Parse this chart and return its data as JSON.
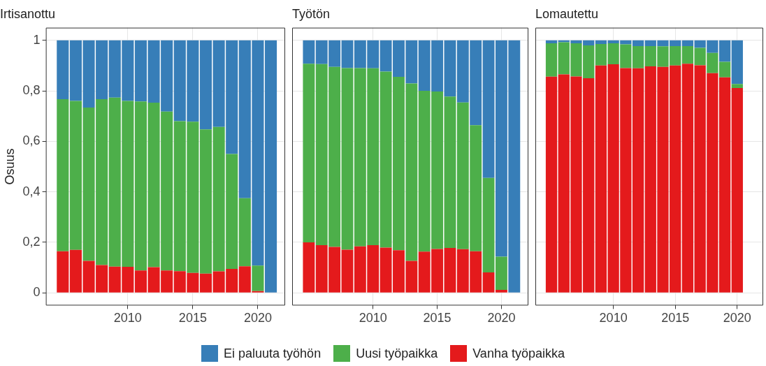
{
  "chart_data": [
    {
      "type": "bar",
      "title": "Irtisanottu",
      "ylabel": "Osuus",
      "stacked": true,
      "legend": "bottom",
      "grid": true,
      "x": [
        2005,
        2006,
        2007,
        2008,
        2009,
        2010,
        2011,
        2012,
        2013,
        2014,
        2015,
        2016,
        2017,
        2018,
        2019,
        2020,
        2021
      ],
      "xlim": [
        2003.7,
        2022.1
      ],
      "xticks": [
        2010,
        2015,
        2020
      ],
      "ylim": [
        -0.05,
        1.05
      ],
      "yticks": [
        0,
        {
          "value": 0.2,
          "label": "0,2"
        },
        {
          "value": 0.4,
          "label": "0,4"
        },
        {
          "value": 0.6,
          "label": "0,6"
        },
        {
          "value": 0.8,
          "label": "0,8"
        },
        1
      ],
      "series": [
        {
          "name": "Vanha työpaikka",
          "color": "#e41a1c",
          "values": [
            0.165,
            0.17,
            0.127,
            0.11,
            0.104,
            0.103,
            0.089,
            0.102,
            0.089,
            0.086,
            0.079,
            0.076,
            0.085,
            0.095,
            0.105,
            0.007,
            0
          ]
        },
        {
          "name": "Uusi työpaikka",
          "color": "#4daf4a",
          "values": [
            0.602,
            0.59,
            0.607,
            0.657,
            0.669,
            0.657,
            0.669,
            0.651,
            0.629,
            0.594,
            0.599,
            0.571,
            0.572,
            0.455,
            0.27,
            0.101,
            0
          ]
        },
        {
          "name": "Ei paluuta työhön",
          "color": "#377eb8",
          "values": [
            0.233,
            0.24,
            0.266,
            0.233,
            0.227,
            0.24,
            0.242,
            0.247,
            0.282,
            0.32,
            0.322,
            0.353,
            0.343,
            0.45,
            0.625,
            0.892,
            1
          ]
        }
      ]
    },
    {
      "type": "bar",
      "title": "Työtön",
      "stacked": true,
      "grid": true,
      "tick_labels": "x",
      "x": [
        2005,
        2006,
        2007,
        2008,
        2009,
        2010,
        2011,
        2012,
        2013,
        2014,
        2015,
        2016,
        2017,
        2018,
        2019,
        2020,
        2021
      ],
      "xlim": [
        2003.7,
        2022.1
      ],
      "xticks": [
        2010,
        2015,
        2020
      ],
      "ylim": [
        -0.05,
        1.05
      ],
      "yticks": [
        0,
        0.2,
        0.4,
        0.6,
        0.8,
        1
      ],
      "series": [
        {
          "color": "#e41a1c",
          "values": [
            0.2,
            0.189,
            0.182,
            0.171,
            0.184,
            0.189,
            0.179,
            0.169,
            0.127,
            0.163,
            0.174,
            0.178,
            0.173,
            0.165,
            0.081,
            0.012,
            0
          ]
        },
        {
          "color": "#4daf4a",
          "values": [
            0.707,
            0.717,
            0.713,
            0.719,
            0.706,
            0.7,
            0.697,
            0.686,
            0.702,
            0.637,
            0.623,
            0.599,
            0.581,
            0.499,
            0.374,
            0.131,
            0
          ]
        },
        {
          "color": "#377eb8",
          "values": [
            0.093,
            0.094,
            0.105,
            0.11,
            0.11,
            0.111,
            0.124,
            0.145,
            0.171,
            0.2,
            0.203,
            0.223,
            0.246,
            0.336,
            0.545,
            0.857,
            1
          ]
        }
      ]
    },
    {
      "type": "bar",
      "title": "Lomautettu",
      "stacked": true,
      "grid": true,
      "tick_labels": "x",
      "x": [
        2005,
        2006,
        2007,
        2008,
        2009,
        2010,
        2011,
        2012,
        2013,
        2014,
        2015,
        2016,
        2017,
        2018,
        2019,
        2020
      ],
      "xlim": [
        2003.7,
        2022.1
      ],
      "xticks": [
        2010,
        2015,
        2020
      ],
      "ylim": [
        -0.05,
        1.05
      ],
      "yticks": [
        0,
        0.2,
        0.4,
        0.6,
        0.8,
        1
      ],
      "series": [
        {
          "color": "#e41a1c",
          "values": [
            0.856,
            0.865,
            0.857,
            0.85,
            0.9,
            0.905,
            0.89,
            0.889,
            0.897,
            0.895,
            0.9,
            0.907,
            0.901,
            0.87,
            0.853,
            0.811
          ]
        },
        {
          "color": "#4daf4a",
          "values": [
            0.132,
            0.127,
            0.131,
            0.13,
            0.085,
            0.083,
            0.094,
            0.088,
            0.08,
            0.081,
            0.077,
            0.07,
            0.069,
            0.08,
            0.062,
            0.016
          ]
        },
        {
          "color": "#377eb8",
          "values": [
            0.012,
            0.008,
            0.012,
            0.02,
            0.015,
            0.012,
            0.016,
            0.023,
            0.023,
            0.024,
            0.023,
            0.023,
            0.03,
            0.05,
            0.085,
            0.173
          ]
        }
      ]
    }
  ]
}
